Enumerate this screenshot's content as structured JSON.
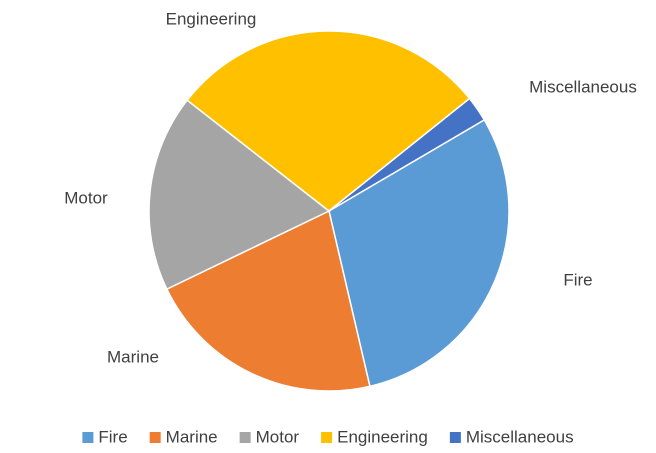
{
  "chart_data": {
    "type": "pie",
    "categories": [
      "Fire",
      "Marine",
      "Motor",
      "Engineering",
      "Miscellaneous"
    ],
    "values": [
      29.8,
      21.5,
      17.7,
      28.7,
      2.3
    ],
    "colors": [
      "#5b9bd5",
      "#ed7d31",
      "#a5a5a5",
      "#ffc000",
      "#4472c4"
    ],
    "legend": "bottom"
  }
}
